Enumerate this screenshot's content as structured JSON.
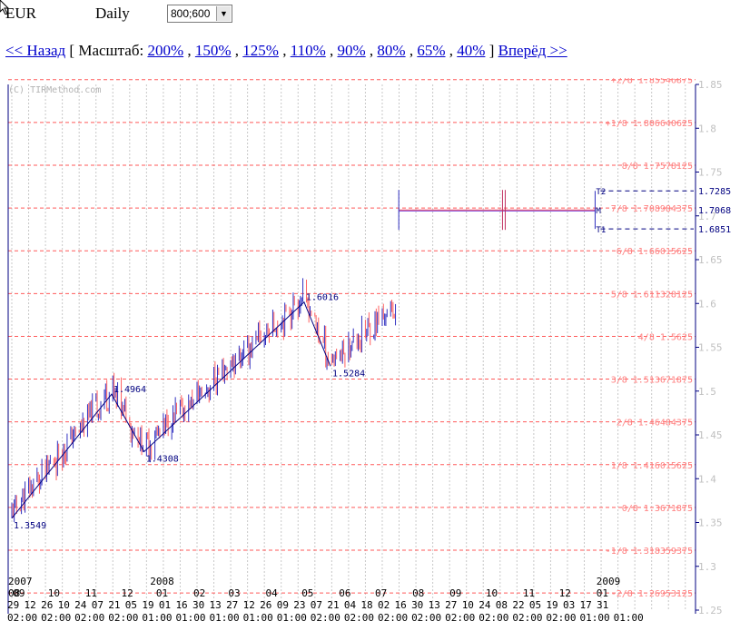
{
  "topbar": {
    "symbol": "EUR",
    "period": "Daily",
    "size_value": "800;600"
  },
  "nav": {
    "back_label": "<< Назад",
    "bracket_open": " [ ",
    "scale_label": "Масштаб:",
    "scales": [
      "200%",
      "150%",
      "125%",
      "110%",
      "90%",
      "80%",
      "65%",
      "40%"
    ],
    "bracket_close": " ] ",
    "forward_label": "Вперёд >>"
  },
  "chart_data": {
    "type": "ohlc",
    "watermark": "(C) TIRMethod.com",
    "ylim": [
      1.25,
      1.85
    ],
    "y_ticks": [
      1.85,
      1.8,
      1.75,
      1.7,
      1.65,
      1.6,
      1.55,
      1.5,
      1.45,
      1.4,
      1.35,
      1.3,
      1.25
    ],
    "y_tick_labels": [
      "1.85",
      "1.8",
      "1.75",
      "1.7",
      "1.65",
      "1.6",
      "1.55",
      "1.5",
      "1.45",
      "1.4",
      "1.35",
      "1.3",
      "1.25"
    ],
    "levels": [
      {
        "label": "+2/8 1.85546875",
        "value": 1.85546875
      },
      {
        "label": "+1/8 1.806640625",
        "value": 1.806640625
      },
      {
        "label": "8/8 1.7578125",
        "value": 1.7578125
      },
      {
        "label": "7/8 1.708984375",
        "value": 1.708984375
      },
      {
        "label": "6/8 1.66015625",
        "value": 1.66015625
      },
      {
        "label": "5/8 1.611328125",
        "value": 1.611328125
      },
      {
        "label": "4/8 1.5625",
        "value": 1.5625
      },
      {
        "label": "3/8 1.513671875",
        "value": 1.513671875
      },
      {
        "label": "2/8 1.46484375",
        "value": 1.46484375
      },
      {
        "label": "1/8 1.416015625",
        "value": 1.416015625
      },
      {
        "label": "0/8 1.3671875",
        "value": 1.3671875
      },
      {
        "label": "-1/8 1.318359375",
        "value": 1.318359375
      },
      {
        "label": "-2/8 1.26953125",
        "value": 1.26953125
      }
    ],
    "targets": [
      {
        "marker": "T2",
        "label": "1.7285",
        "value": 1.7285
      },
      {
        "marker": "M",
        "label": "1.7068",
        "value": 1.7068
      },
      {
        "marker": "T1",
        "label": "1.6851",
        "value": 1.6851
      }
    ],
    "zigzag": [
      {
        "label": "1.3549",
        "value": 1.3549,
        "day": 0
      },
      {
        "label": "1.4964",
        "value": 1.4964,
        "day": 83
      },
      {
        "label": "1.4308",
        "value": 1.4308,
        "day": 110
      },
      {
        "label": "1.6016",
        "value": 1.6016,
        "day": 243
      },
      {
        "label": "1.5284",
        "value": 1.5284,
        "day": 265
      }
    ],
    "last_day": 321,
    "x_axis": {
      "years": [
        {
          "label": "2007",
          "day": 0
        },
        {
          "label": "2008",
          "day": 118
        },
        {
          "label": "2009",
          "day": 489
        }
      ],
      "months": [
        {
          "label": "08",
          "day": 0
        },
        {
          "label": "09",
          "day": 4
        },
        {
          "label": "10",
          "day": 33
        },
        {
          "label": "11",
          "day": 64
        },
        {
          "label": "12",
          "day": 94
        },
        {
          "label": "01",
          "day": 123
        },
        {
          "label": "02",
          "day": 154
        },
        {
          "label": "03",
          "day": 183
        },
        {
          "label": "04",
          "day": 214
        },
        {
          "label": "05",
          "day": 244
        },
        {
          "label": "06",
          "day": 275
        },
        {
          "label": "07",
          "day": 305
        },
        {
          "label": "08",
          "day": 336
        },
        {
          "label": "09",
          "day": 367
        },
        {
          "label": "10",
          "day": 397
        },
        {
          "label": "11",
          "day": 428
        },
        {
          "label": "12",
          "day": 458
        },
        {
          "label": "01",
          "day": 489
        }
      ],
      "days": [
        "29",
        "12",
        "26",
        "10",
        "24",
        "07",
        "21",
        "05",
        "19",
        "01",
        "16",
        "30",
        "13",
        "27",
        "12",
        "26",
        "09",
        "23",
        "07",
        "21",
        "04",
        "18",
        "02",
        "16",
        "30",
        "13",
        "27",
        "10",
        "24",
        "08",
        "22",
        "05",
        "19",
        "03",
        "17",
        "31"
      ],
      "times": [
        "02:00",
        "02:00",
        "02:00",
        "02:00",
        "01:00",
        "01:00",
        "01:00",
        "01:00",
        "01:00",
        "02:00",
        "02:00",
        "02:00",
        "02:00",
        "02:00",
        "02:00",
        "02:00",
        "02:00",
        "01:00",
        "01:00"
      ]
    },
    "colors": {
      "level": "#ff5a5a",
      "level_text": "#ff8080",
      "grid": "#c8c8c8",
      "axis": "#000080",
      "bar_up": "#3030c0",
      "bar_down": "#ff6060",
      "zigzag": "#000080",
      "target_text": "#000080"
    }
  }
}
